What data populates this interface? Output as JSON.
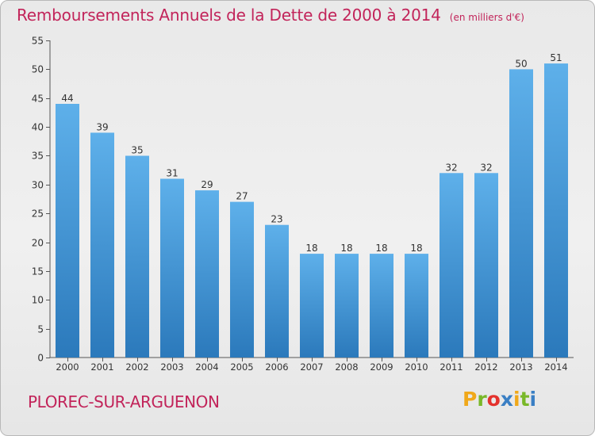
{
  "header": {
    "title": "Remboursements Annuels de la Dette de 2000 à 2014",
    "unit": "(en milliers d'€)"
  },
  "footer": {
    "commune": "PLOREC-SUR-ARGUENON",
    "logo_letters": [
      "P",
      "r",
      "o",
      "x",
      "i",
      "t",
      "i"
    ],
    "logo_colors": [
      "#f0a81a",
      "#79b829",
      "#e4322d",
      "#3a7fc4",
      "#f0a81a",
      "#79b829",
      "#3a7fc4"
    ]
  },
  "colors": {
    "bar_light": "#5eb0ea",
    "bar_dark": "#2b79bb",
    "text_accent": "#c2245a"
  },
  "chart_data": {
    "type": "bar",
    "title": "Remboursements Annuels de la Dette de 2000 à 2014",
    "subtitle": "(en milliers d'€)",
    "xlabel": "",
    "ylabel": "",
    "categories": [
      "2000",
      "2001",
      "2002",
      "2003",
      "2004",
      "2005",
      "2006",
      "2007",
      "2008",
      "2009",
      "2010",
      "2011",
      "2012",
      "2013",
      "2014"
    ],
    "values": [
      44,
      39,
      35,
      31,
      29,
      27,
      23,
      18,
      18,
      18,
      18,
      32,
      32,
      50,
      51
    ],
    "ylim": [
      0,
      55
    ],
    "yticks": [
      0,
      5,
      10,
      15,
      20,
      25,
      30,
      35,
      40,
      45,
      50,
      55
    ],
    "grid": false,
    "legend": "none"
  }
}
